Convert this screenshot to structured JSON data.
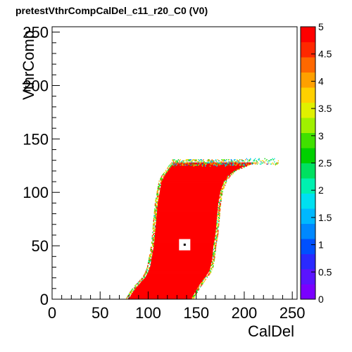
{
  "chart_data": {
    "type": "heatmap",
    "title": "pretestVthrCompCalDel_c11_r20_C0 (V0)",
    "xlabel": "CalDel",
    "ylabel": "VthrComp",
    "xlim": [
      0,
      255
    ],
    "ylim": [
      0,
      255
    ],
    "x_ticks": [
      0,
      50,
      100,
      150,
      200,
      250
    ],
    "y_ticks": [
      0,
      50,
      100,
      150,
      200,
      250
    ],
    "zlim": [
      0,
      5
    ],
    "z_ticks": [
      "0",
      "0.5",
      "1",
      "1.5",
      "2",
      "2.5",
      "3",
      "3.5",
      "4",
      "4.5",
      "5"
    ],
    "palette": [
      "#7a00ff",
      "#5a14ff",
      "#2a2aff",
      "#0050ff",
      "#0088ff",
      "#00b8ff",
      "#00e0f0",
      "#00f0b0",
      "#00e060",
      "#00d000",
      "#40e000",
      "#a0f000",
      "#e0f000",
      "#ffd000",
      "#ffa000",
      "#ff6800",
      "#ff2800",
      "#ff0000"
    ],
    "plateau": {
      "value": 5,
      "y_start": 0,
      "y_end": 127,
      "left_edge_x": [
        [
          0,
          80
        ],
        [
          5,
          83
        ],
        [
          10,
          87
        ],
        [
          15,
          92
        ],
        [
          20,
          97
        ],
        [
          25,
          100
        ],
        [
          30,
          102
        ],
        [
          40,
          104
        ],
        [
          50,
          106
        ],
        [
          60,
          107
        ],
        [
          70,
          108
        ],
        [
          80,
          109
        ],
        [
          90,
          110
        ],
        [
          100,
          112
        ],
        [
          110,
          114
        ],
        [
          115,
          117
        ],
        [
          120,
          121
        ],
        [
          124,
          124
        ],
        [
          127,
          127
        ]
      ],
      "right_edge_x": [
        [
          0,
          145
        ],
        [
          5,
          148
        ],
        [
          10,
          151
        ],
        [
          15,
          155
        ],
        [
          20,
          159
        ],
        [
          25,
          163
        ],
        [
          30,
          165
        ],
        [
          40,
          167
        ],
        [
          50,
          168
        ],
        [
          60,
          170
        ],
        [
          70,
          171
        ],
        [
          80,
          172
        ],
        [
          90,
          173
        ],
        [
          100,
          175
        ],
        [
          110,
          179
        ],
        [
          115,
          183
        ],
        [
          120,
          190
        ],
        [
          124,
          200
        ],
        [
          127,
          210
        ]
      ]
    },
    "noise_band": {
      "x_start": 125,
      "x_end": 235,
      "y_center": 128,
      "value_range": [
        1,
        4.5
      ]
    },
    "masked_pixel": {
      "x": 138,
      "y": 51
    }
  }
}
